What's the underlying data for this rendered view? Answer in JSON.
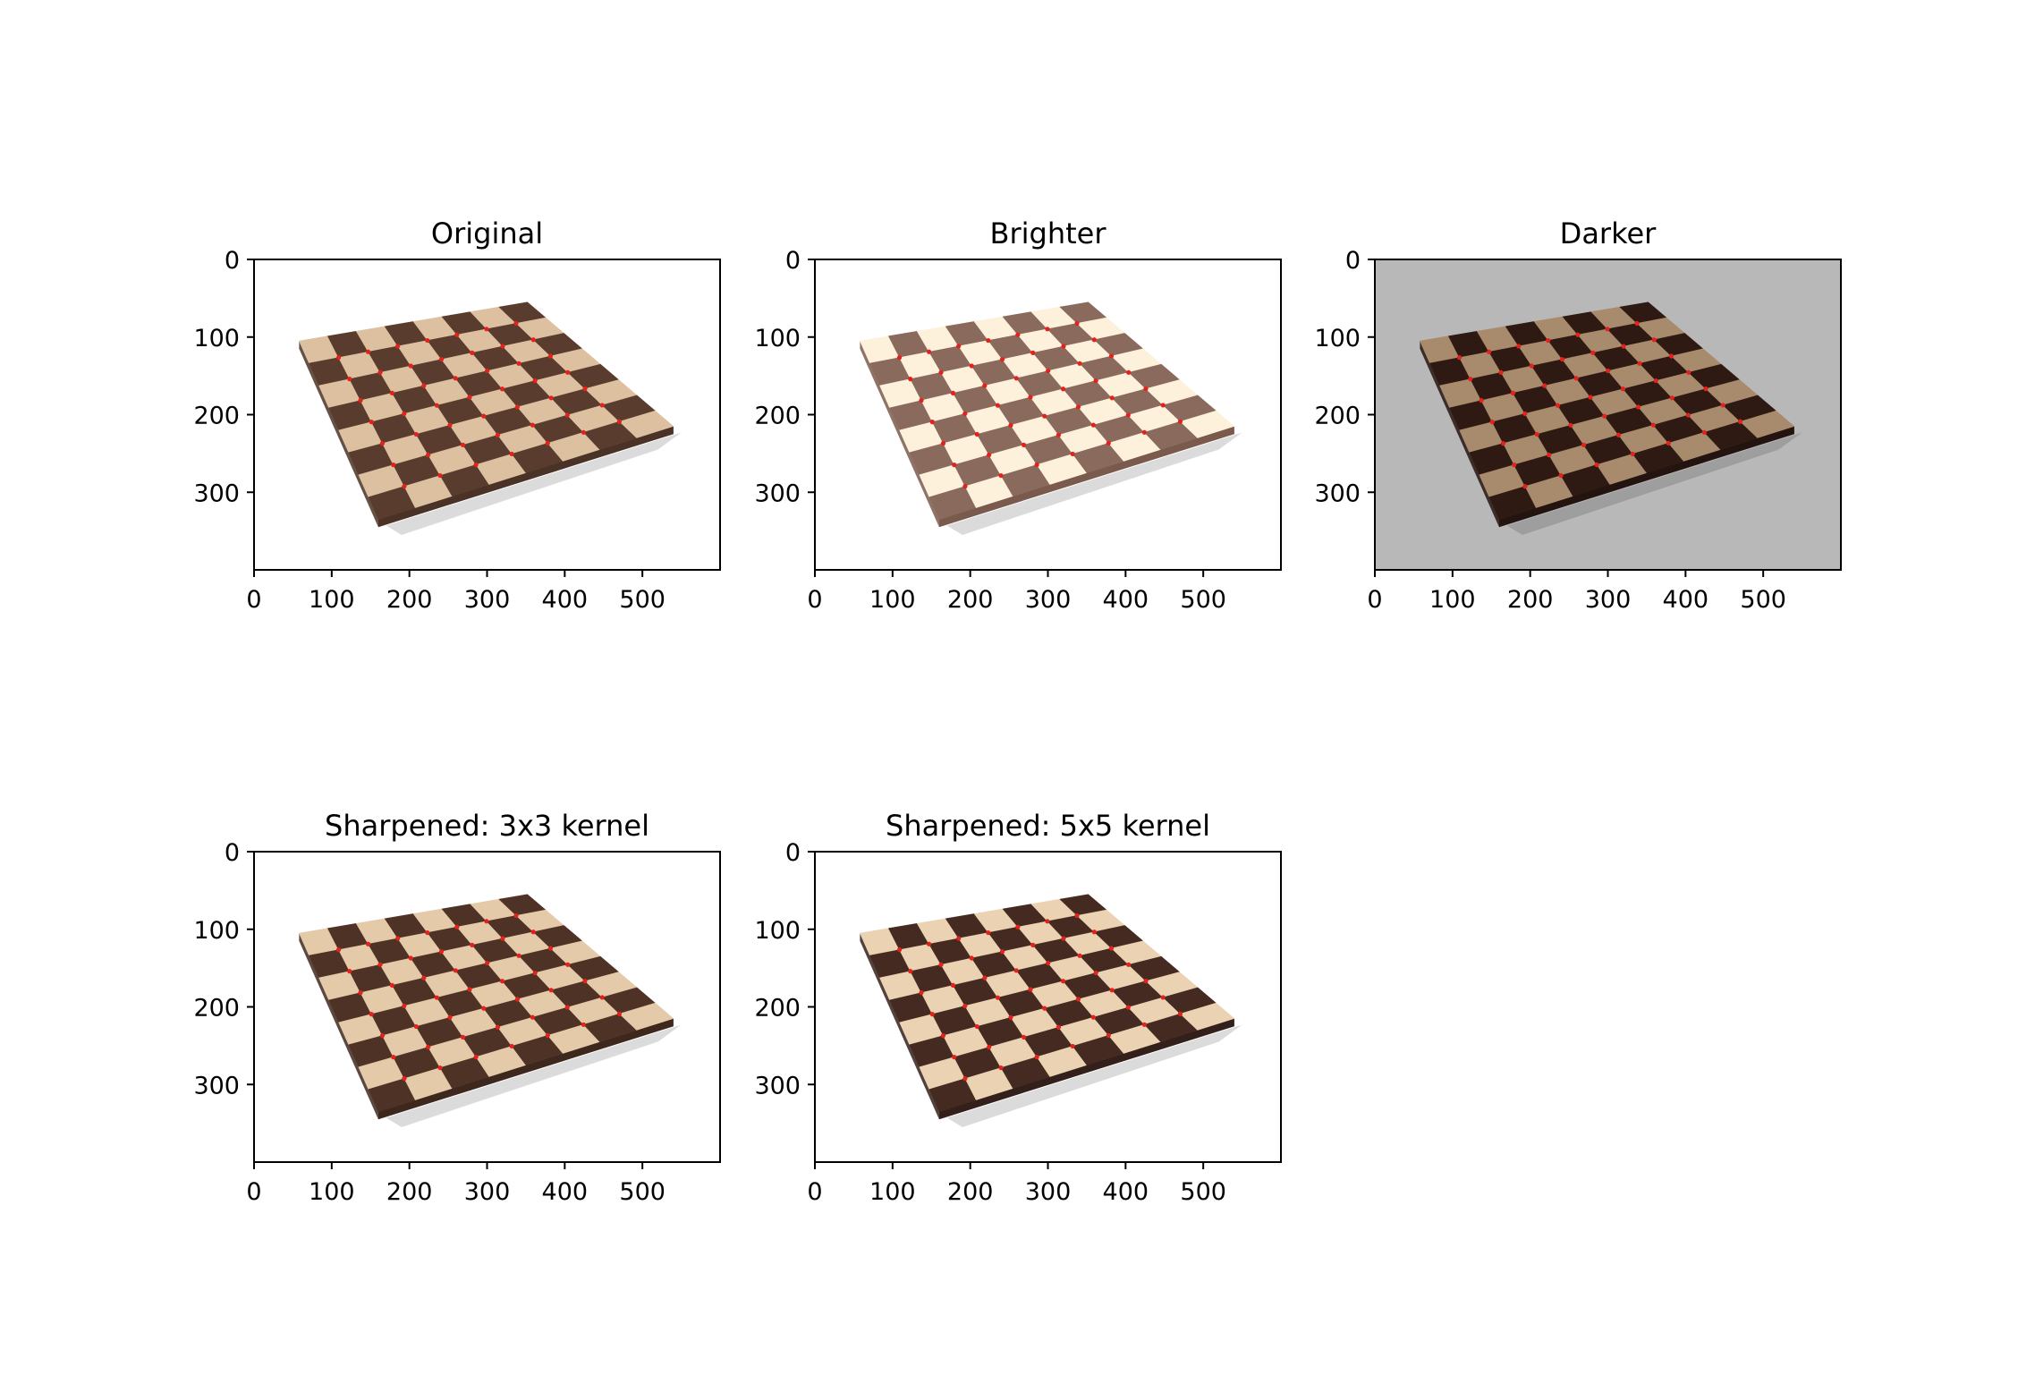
{
  "figure": {
    "panels": [
      {
        "id": "original",
        "title": "Original",
        "background": "#ffffff",
        "light_square": "#dcc0a0",
        "dark_square": "#5a3c2e",
        "edge": "#4a3226",
        "x_ticks": [
          "0",
          "100",
          "200",
          "300",
          "400",
          "500"
        ],
        "y_ticks": [
          "0",
          "100",
          "200",
          "300"
        ]
      },
      {
        "id": "brighter",
        "title": "Brighter",
        "background": "#ffffff",
        "light_square": "#fdf1dc",
        "dark_square": "#8a6a5c",
        "edge": "#7a5a4c",
        "x_ticks": [
          "0",
          "100",
          "200",
          "300",
          "400",
          "500"
        ],
        "y_ticks": [
          "0",
          "100",
          "200",
          "300"
        ]
      },
      {
        "id": "darker",
        "title": "Darker",
        "background": "#b8b8b8",
        "light_square": "#a88a6c",
        "dark_square": "#2e1a12",
        "edge": "#241410",
        "x_ticks": [
          "0",
          "100",
          "200",
          "300",
          "400",
          "500"
        ],
        "y_ticks": [
          "0",
          "100",
          "200",
          "300"
        ]
      },
      {
        "id": "sharpened-3x3",
        "title": "Sharpened: 3x3 kernel",
        "background": "#ffffff",
        "light_square": "#e4caa8",
        "dark_square": "#4e3226",
        "edge": "#3e281e",
        "x_ticks": [
          "0",
          "100",
          "200",
          "300",
          "400",
          "500"
        ],
        "y_ticks": [
          "0",
          "100",
          "200",
          "300"
        ]
      },
      {
        "id": "sharpened-5x5",
        "title": "Sharpened: 5x5 kernel",
        "background": "#ffffff",
        "light_square": "#ead2b2",
        "dark_square": "#442a20",
        "edge": "#34201a",
        "x_ticks": [
          "0",
          "100",
          "200",
          "300",
          "400",
          "500"
        ],
        "y_ticks": [
          "0",
          "100",
          "200",
          "300"
        ]
      }
    ]
  }
}
